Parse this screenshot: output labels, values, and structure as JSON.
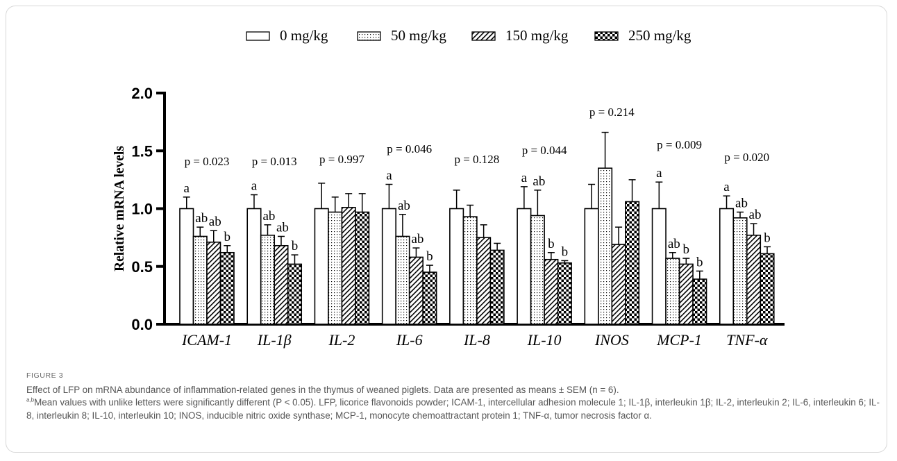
{
  "chart_data": {
    "type": "bar",
    "ylabel": "Relative mRNA levels",
    "xlabel": "",
    "ylim": [
      0,
      2.0
    ],
    "yticks": [
      0.0,
      0.5,
      1.0,
      1.5,
      2.0
    ],
    "ytick_labels": [
      "0.0",
      "0.5",
      "1.0",
      "1.5",
      "2.0"
    ],
    "legend_position": "top",
    "categories": [
      "ICAM-1",
      "IL-1β",
      "IL-2",
      "IL-6",
      "IL-8",
      "IL-10",
      "INOS",
      "MCP-1",
      "TNF-α"
    ],
    "p_values": [
      "p = 0.023",
      "p = 0.013",
      "p = 0.997",
      "p = 0.046",
      "p = 0.128",
      "p = 0.044",
      "p = 0.214",
      "p = 0.009",
      "p = 0.020"
    ],
    "series": [
      {
        "name": "0 mg/kg",
        "pattern": "open",
        "values": [
          1.0,
          1.0,
          1.0,
          1.0,
          1.0,
          1.0,
          1.0,
          1.0,
          1.0
        ],
        "sem": [
          0.1,
          0.12,
          0.22,
          0.21,
          0.16,
          0.19,
          0.21,
          0.23,
          0.11
        ],
        "letters": [
          "a",
          "a",
          "",
          "a",
          "",
          "a",
          "",
          "a",
          "a"
        ]
      },
      {
        "name": "50 mg/kg",
        "pattern": "dotted",
        "values": [
          0.76,
          0.77,
          0.97,
          0.76,
          0.93,
          0.94,
          1.35,
          0.57,
          0.92
        ],
        "sem": [
          0.08,
          0.09,
          0.13,
          0.19,
          0.1,
          0.22,
          0.31,
          0.05,
          0.05
        ],
        "letters": [
          "ab",
          "ab",
          "",
          "ab",
          "",
          "ab",
          "",
          "ab",
          "ab"
        ]
      },
      {
        "name": "150 mg/kg",
        "pattern": "hatched",
        "values": [
          0.71,
          0.68,
          1.01,
          0.58,
          0.75,
          0.56,
          0.69,
          0.52,
          0.77
        ],
        "sem": [
          0.1,
          0.08,
          0.12,
          0.08,
          0.11,
          0.06,
          0.15,
          0.05,
          0.1
        ],
        "letters": [
          "ab",
          "ab",
          "",
          "ab",
          "",
          "b",
          "",
          "b",
          "ab"
        ]
      },
      {
        "name": "250 mg/kg",
        "pattern": "checkered",
        "values": [
          0.62,
          0.52,
          0.97,
          0.45,
          0.64,
          0.53,
          1.06,
          0.39,
          0.61
        ],
        "sem": [
          0.06,
          0.08,
          0.16,
          0.06,
          0.06,
          0.02,
          0.19,
          0.07,
          0.06
        ],
        "letters": [
          "b",
          "b",
          "",
          "b",
          "",
          "b",
          "",
          "b",
          "b"
        ]
      }
    ]
  },
  "caption": {
    "figure_label": "FIGURE 3",
    "line1": "Effect of LFP on mRNA abundance of inflammation-related genes in the thymus of weaned piglets. Data are presented as means ± SEM (n = 6).",
    "superscript": "a,b",
    "line2": "Mean values with unlike letters were significantly different (P < 0.05). LFP, licorice flavonoids powder; ICAM-1, intercellular adhesion molecule 1; IL-1β, interleukin 1β; IL-2, interleukin 2; IL-6, interleukin 6; IL-8, interleukin 8; IL-10, interleukin 10; INOS, inducible nitric oxide synthase; MCP-1, monocyte chemoattractant protein 1; TNF-α, tumor necrosis factor α."
  }
}
